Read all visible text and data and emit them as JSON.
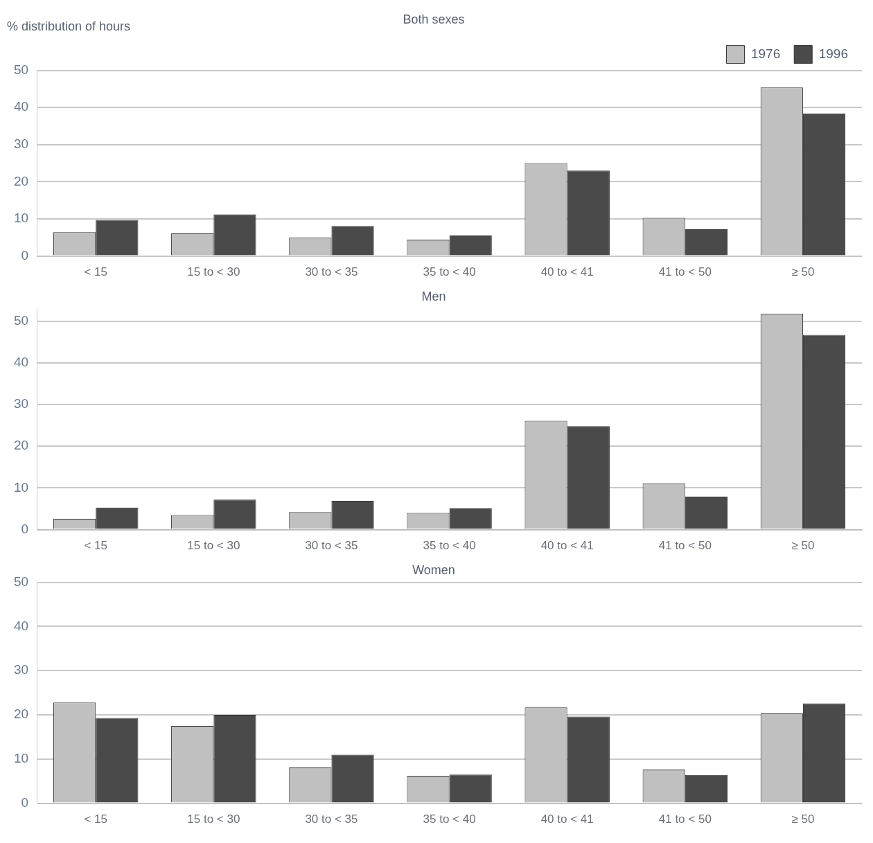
{
  "chart_data": [
    {
      "type": "bar",
      "title": "Both sexes",
      "ylabel": "% distribution of hours",
      "categories": [
        "< 15",
        "15 to < 30",
        "30 to < 35",
        "35 to < 40",
        "40 to < 41",
        "41 to < 50",
        "≥ 50"
      ],
      "series": [
        {
          "name": "1976",
          "color": "#c0c0c0",
          "values": [
            6.4,
            6.1,
            5.0,
            4.4,
            25.0,
            10.3,
            45.4
          ]
        },
        {
          "name": "1996",
          "color": "#4a4a4a",
          "values": [
            9.7,
            11.2,
            8.1,
            5.5,
            23.0,
            7.2,
            38.4
          ]
        }
      ],
      "ylim": [
        0,
        50
      ],
      "yticks": [
        0,
        10,
        20,
        30,
        40,
        50
      ],
      "grid": "y",
      "legend": "top right"
    },
    {
      "type": "bar",
      "title": "Men",
      "categories": [
        "< 15",
        "15 to < 30",
        "30 to < 35",
        "35 to < 40",
        "40 to < 41",
        "41 to < 50",
        "≥ 50"
      ],
      "series": [
        {
          "color": "#c0c0c0",
          "values": [
            2.6,
            3.5,
            4.2,
            4.0,
            26.1,
            11.1,
            51.8
          ]
        },
        {
          "color": "#4a4a4a",
          "values": [
            5.3,
            7.2,
            6.9,
            5.1,
            24.8,
            7.9,
            46.7
          ]
        }
      ],
      "ylim": [
        0,
        53
      ],
      "yticks": [
        0,
        10,
        20,
        30,
        40,
        50
      ],
      "grid": "y"
    },
    {
      "type": "bar",
      "title": "Women",
      "categories": [
        "< 15",
        "15 to < 30",
        "30 to < 35",
        "35 to < 40",
        "40 to < 41",
        "41 to < 50",
        "≥ 50"
      ],
      "series": [
        {
          "color": "#c0c0c0",
          "values": [
            22.8,
            17.5,
            8.1,
            6.2,
            21.7,
            7.6,
            20.3
          ]
        },
        {
          "color": "#4a4a4a",
          "values": [
            19.3,
            20.0,
            11.0,
            6.5,
            19.6,
            6.4,
            22.6
          ]
        }
      ],
      "ylim": [
        0,
        50
      ],
      "yticks": [
        0,
        10,
        20,
        30,
        40,
        50
      ],
      "grid": "y"
    }
  ]
}
